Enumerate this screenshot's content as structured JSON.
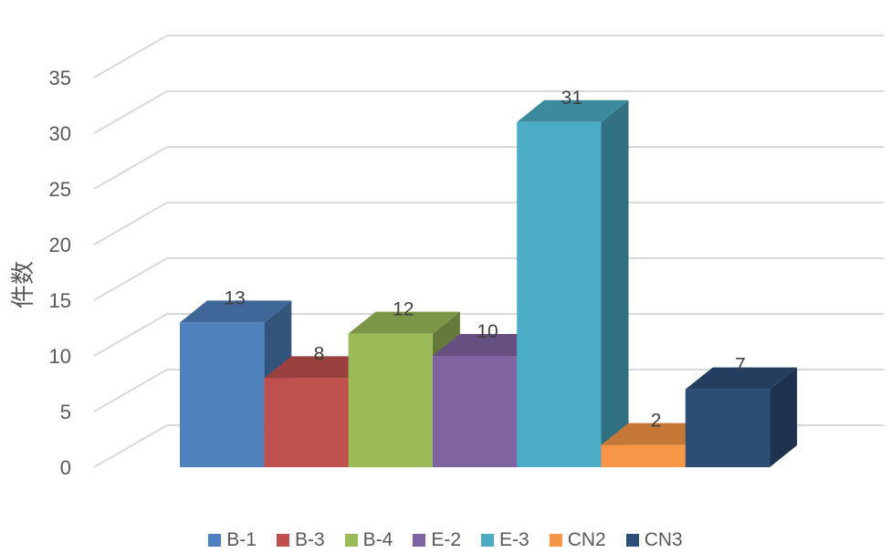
{
  "chart_data": {
    "type": "bar",
    "title": "",
    "xlabel": "",
    "ylabel": "件数",
    "ylim": [
      0,
      35
    ],
    "yticks": [
      0,
      5,
      10,
      15,
      20,
      25,
      30,
      35
    ],
    "grid": true,
    "legend_position": "bottom",
    "style": "3d-column",
    "series": [
      {
        "name": "B-1",
        "values": [
          13
        ],
        "color": "#4f81bd"
      },
      {
        "name": "B-3",
        "values": [
          8
        ],
        "color": "#c0504d"
      },
      {
        "name": "B-4",
        "values": [
          12
        ],
        "color": "#9bbb59"
      },
      {
        "name": "E-2",
        "values": [
          10
        ],
        "color": "#8064a2"
      },
      {
        "name": "E-3",
        "values": [
          31
        ],
        "color": "#4bacc6"
      },
      {
        "name": "CN2",
        "values": [
          2
        ],
        "color": "#f79646"
      },
      {
        "name": "CN3",
        "values": [
          7
        ],
        "color": "#2c4d75"
      }
    ]
  }
}
